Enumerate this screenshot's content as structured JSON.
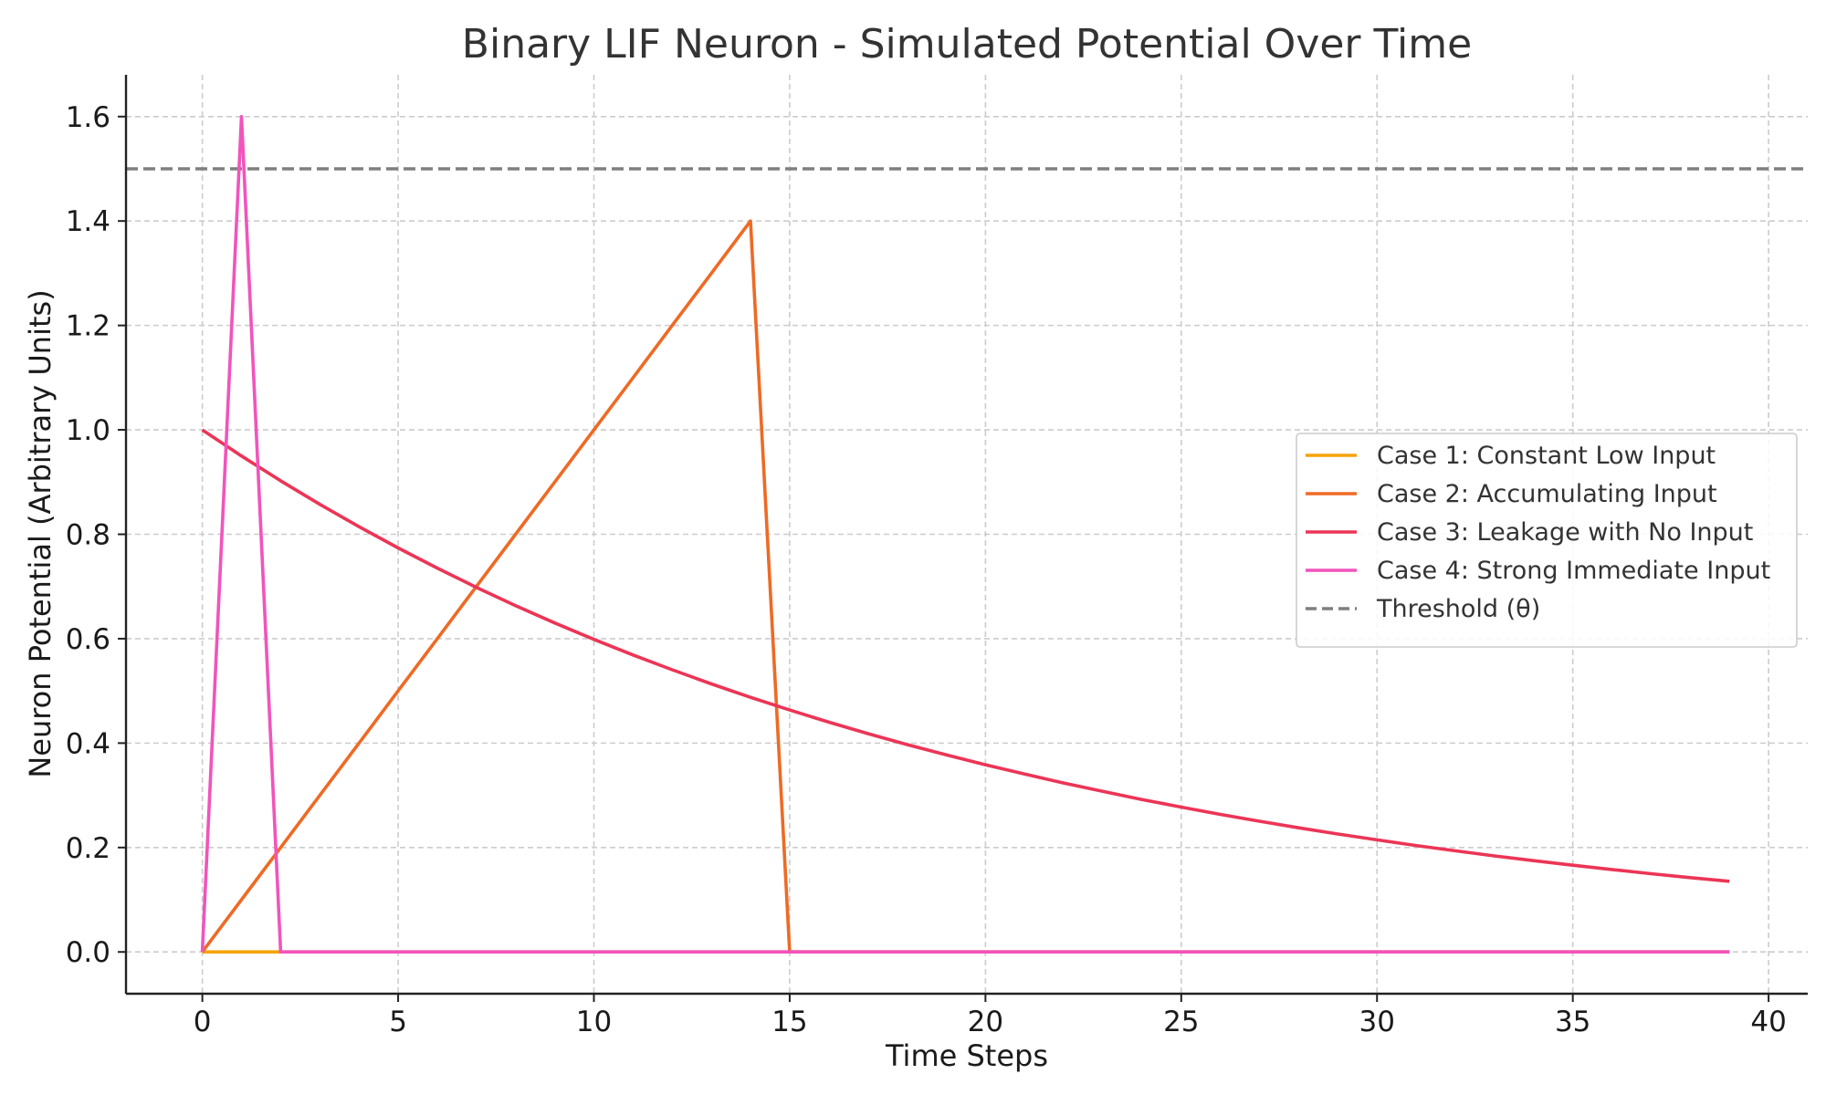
{
  "chart_data": {
    "type": "line",
    "title": "Binary LIF Neuron - Simulated Potential Over Time",
    "xlabel": "Time Steps",
    "ylabel": "Neuron Potential (Arbitrary Units)",
    "xlim": [
      -1.95,
      41.0
    ],
    "ylim": [
      -0.08,
      1.68
    ],
    "xticks": [
      0,
      5,
      10,
      15,
      20,
      25,
      30,
      35,
      40
    ],
    "yticks": [
      0.0,
      0.2,
      0.4,
      0.6,
      0.8,
      1.0,
      1.2,
      1.4,
      1.6
    ],
    "xtick_labels": [
      "0",
      "5",
      "10",
      "15",
      "20",
      "25",
      "30",
      "35",
      "40"
    ],
    "ytick_labels": [
      "0.0",
      "0.2",
      "0.4",
      "0.6",
      "0.8",
      "1.0",
      "1.2",
      "1.4",
      "1.6"
    ],
    "grid": true,
    "legend_position": "center-right",
    "series": [
      {
        "name": "Case 1: Constant Low Input",
        "color": "#f5a30a",
        "x": [
          0,
          1,
          2,
          3,
          4,
          5,
          6,
          7,
          8,
          9,
          10,
          11,
          12,
          13,
          14,
          15,
          16,
          17,
          18,
          19,
          20,
          21,
          22,
          23,
          24,
          25,
          26,
          27,
          28,
          29,
          30,
          31,
          32,
          33,
          34,
          35,
          36,
          37,
          38,
          39
        ],
        "y": [
          0,
          0,
          0,
          0,
          0,
          0,
          0,
          0,
          0,
          0,
          0,
          0,
          0,
          0,
          0,
          0,
          0,
          0,
          0,
          0,
          0,
          0,
          0,
          0,
          0,
          0,
          0,
          0,
          0,
          0,
          0,
          0,
          0,
          0,
          0,
          0,
          0,
          0,
          0,
          0
        ]
      },
      {
        "name": "Case 2: Accumulating Input",
        "color": "#ee6a25",
        "x": [
          0,
          1,
          2,
          3,
          4,
          5,
          6,
          7,
          8,
          9,
          10,
          11,
          12,
          13,
          14,
          15,
          16,
          17,
          18,
          19,
          20,
          21,
          22,
          23,
          24,
          25,
          26,
          27,
          28,
          29,
          30,
          31,
          32,
          33,
          34,
          35,
          36,
          37,
          38,
          39
        ],
        "y": [
          0,
          0.1,
          0.2,
          0.3,
          0.4,
          0.5,
          0.6,
          0.7,
          0.8,
          0.9,
          1.0,
          1.1,
          1.2,
          1.3,
          1.4,
          0,
          0,
          0,
          0,
          0,
          0,
          0,
          0,
          0,
          0,
          0,
          0,
          0,
          0,
          0,
          0,
          0,
          0,
          0,
          0,
          0,
          0,
          0,
          0,
          0
        ]
      },
      {
        "name": "Case 3: Leakage with No Input",
        "color": "#ec3556",
        "x": [
          0,
          1,
          2,
          3,
          4,
          5,
          6,
          7,
          8,
          9,
          10,
          11,
          12,
          13,
          14,
          15,
          16,
          17,
          18,
          19,
          20,
          21,
          22,
          23,
          24,
          25,
          26,
          27,
          28,
          29,
          30,
          31,
          32,
          33,
          34,
          35,
          36,
          37,
          38,
          39
        ],
        "y": [
          1.0,
          0.95,
          0.9025,
          0.8574,
          0.8145,
          0.7738,
          0.7351,
          0.6983,
          0.6634,
          0.6302,
          0.5987,
          0.5688,
          0.5404,
          0.5133,
          0.4877,
          0.4633,
          0.4401,
          0.4181,
          0.3972,
          0.3774,
          0.3585,
          0.3406,
          0.3235,
          0.3074,
          0.292,
          0.2774,
          0.2635,
          0.2503,
          0.2378,
          0.2259,
          0.2146,
          0.2039,
          0.1937,
          0.184,
          0.1748,
          0.1661,
          0.1578,
          0.1499,
          0.1424,
          0.1353
        ]
      },
      {
        "name": "Case 4: Strong Immediate Input",
        "color": "#f154bd",
        "x": [
          0,
          1,
          2,
          3,
          4,
          5,
          6,
          7,
          8,
          9,
          10,
          11,
          12,
          13,
          14,
          15,
          16,
          17,
          18,
          19,
          20,
          21,
          22,
          23,
          24,
          25,
          26,
          27,
          28,
          29,
          30,
          31,
          32,
          33,
          34,
          35,
          36,
          37,
          38,
          39
        ],
        "y": [
          0,
          1.6,
          0,
          0,
          0,
          0,
          0,
          0,
          0,
          0,
          0,
          0,
          0,
          0,
          0,
          0,
          0,
          0,
          0,
          0,
          0,
          0,
          0,
          0,
          0,
          0,
          0,
          0,
          0,
          0,
          0,
          0,
          0,
          0,
          0,
          0,
          0,
          0,
          0,
          0
        ]
      }
    ],
    "reference_lines": [
      {
        "name": "Threshold (θ)",
        "y": 1.5,
        "color": "#7f7f7f",
        "style": "dashed"
      }
    ]
  }
}
